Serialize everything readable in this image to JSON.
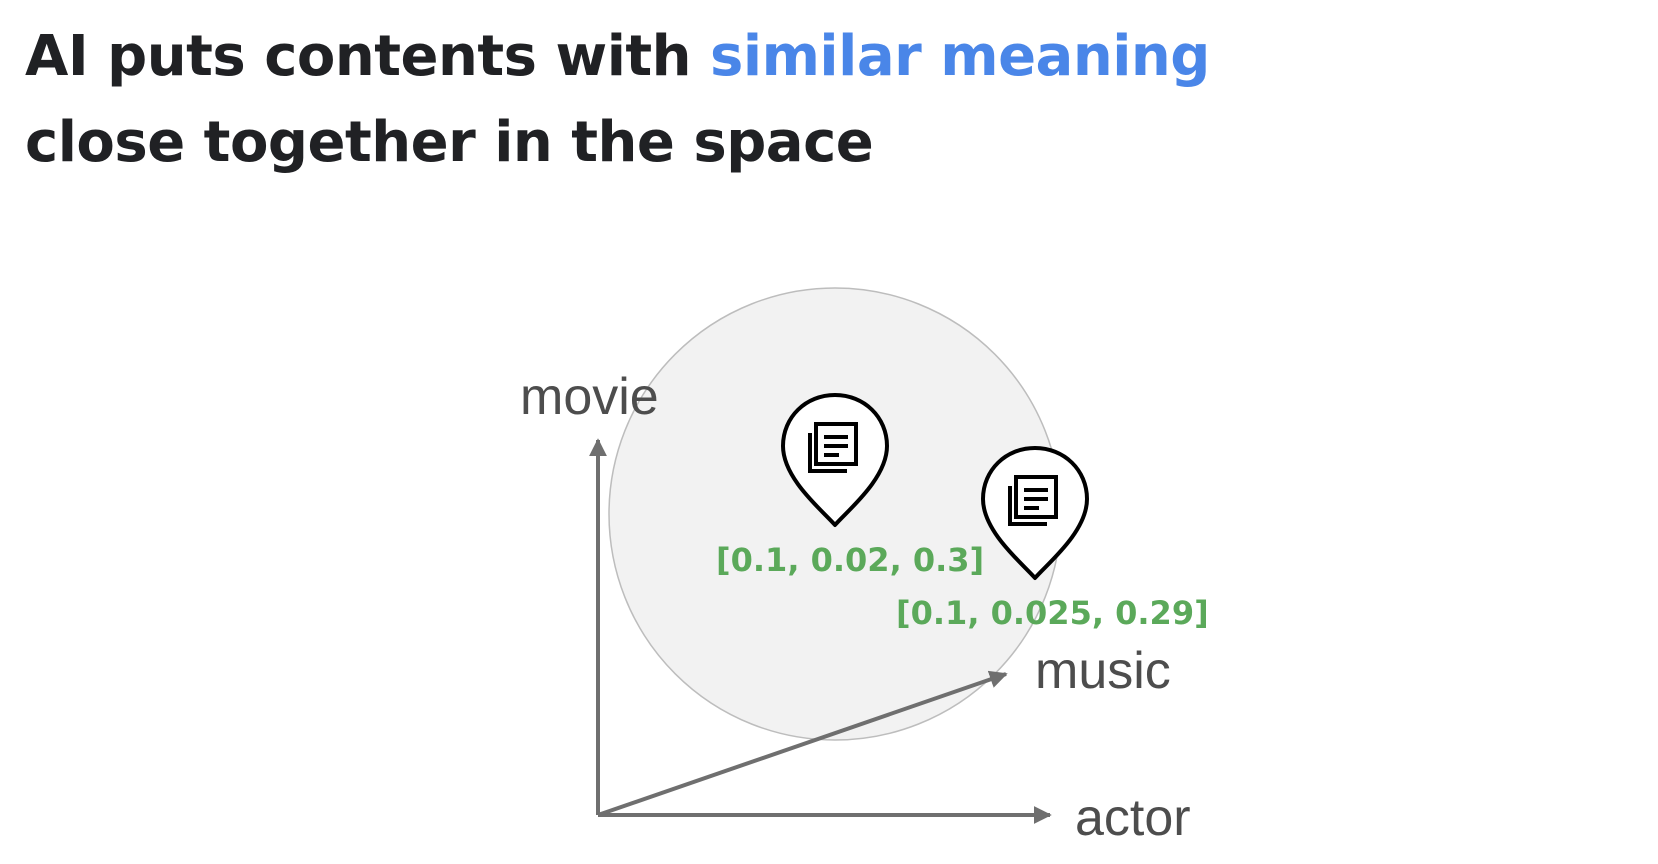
{
  "title": {
    "line1_prefix": "AI puts contents with ",
    "line1_highlight": "similar meaning",
    "line2": "close together in the space"
  },
  "axes": {
    "y": "movie",
    "x": "actor",
    "z": "music"
  },
  "documents": [
    {
      "icon": "document-pin-icon",
      "vector": "[0.1, 0.02, 0.3]"
    },
    {
      "icon": "document-pin-icon",
      "vector": "[0.1, 0.025, 0.29]"
    }
  ],
  "colors": {
    "title": "#202124",
    "highlight": "#4a86e8",
    "vector_label": "#5ba95a",
    "axis": "#6f6f6f",
    "cluster_fill": "#f2f2f2"
  }
}
